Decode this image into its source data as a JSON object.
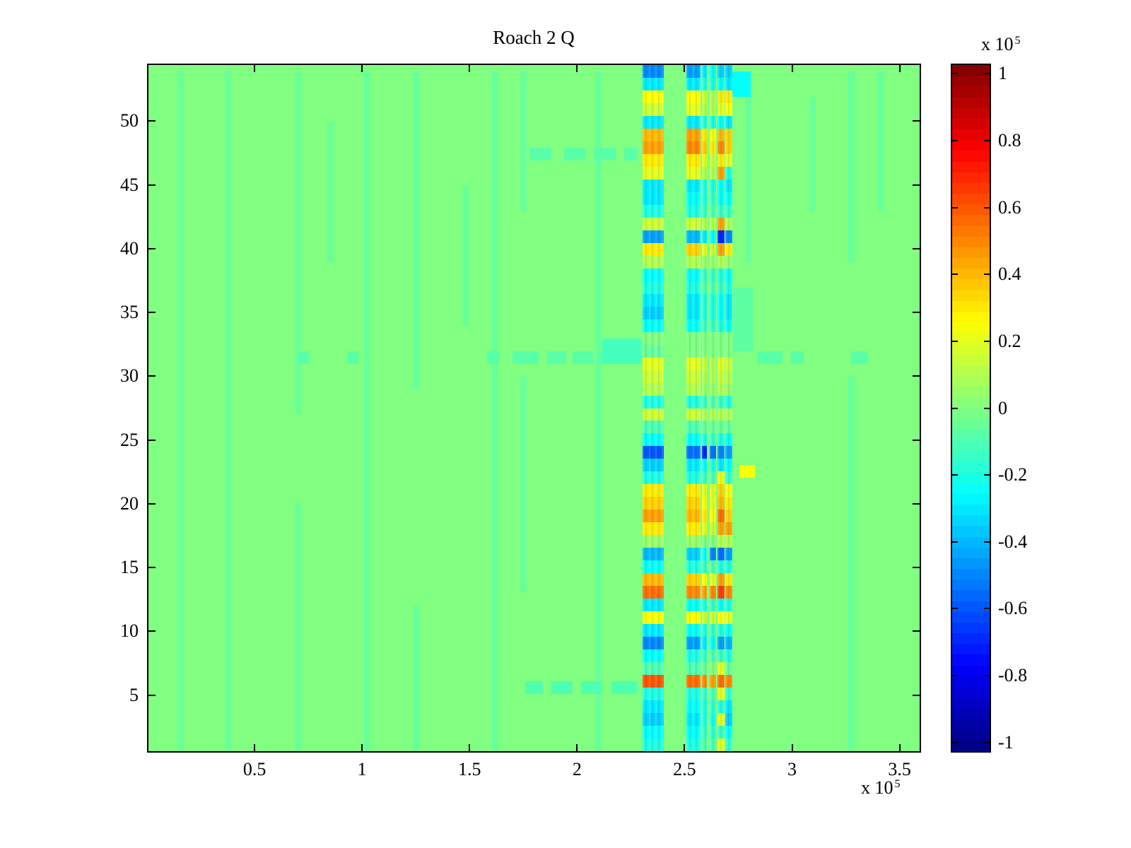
{
  "figure": {
    "title": "Roach 2 Q",
    "multiplier_base": "x 10",
    "multiplier_exponent": "5"
  },
  "chart_data": {
    "type": "heatmap",
    "title": "Roach 2 Q",
    "colormap": "jet",
    "grid": false,
    "x_axis": {
      "range_x1e5": [
        0,
        3.6
      ],
      "tick_values_x1e5": [
        0.5,
        1,
        1.5,
        2,
        2.5,
        3,
        3.5
      ],
      "tick_labels": [
        "0.5",
        "1",
        "1.5",
        "2",
        "2.5",
        "3",
        "3.5"
      ],
      "offset_text": "x 10^5"
    },
    "y_axis": {
      "range_rows": [
        0.5,
        54.5
      ],
      "rows": 54,
      "tick_values": [
        5,
        10,
        15,
        20,
        25,
        30,
        35,
        40,
        45,
        50
      ],
      "tick_labels": [
        "5",
        "10",
        "15",
        "20",
        "25",
        "30",
        "35",
        "40",
        "45",
        "50"
      ]
    },
    "colorbar": {
      "offset_text": "x 10^5",
      "clim_x1e5": [
        -1.03,
        1.03
      ],
      "steps": 64,
      "tick_values_x1e5": [
        1,
        0.8,
        0.6,
        0.4,
        0.2,
        0,
        -0.2,
        -0.4,
        -0.6,
        -0.8,
        -1
      ],
      "tick_labels": [
        "1",
        "0.8",
        "0.6",
        "0.4",
        "0.2",
        "0",
        "-0.2",
        "-0.4",
        "-0.6",
        "-0.8",
        "-1"
      ]
    },
    "background_value_x1e5": 0,
    "bands": [
      {
        "name": "band-2.3e5",
        "x_x1e5": [
          2.305,
          2.405
        ],
        "values_x1e5_rows54_to_1": [
          -0.5,
          -0.3,
          0.25,
          0.15,
          -0.3,
          0.4,
          0.45,
          0.3,
          0.2,
          -0.3,
          -0.3,
          -0.2,
          0.15,
          -0.45,
          0.3,
          0.1,
          -0.25,
          -0.2,
          -0.3,
          -0.35,
          -0.25,
          0.0,
          -0.05,
          0.2,
          0.15,
          0.1,
          -0.2,
          0.15,
          -0.1,
          -0.25,
          -0.6,
          -0.35,
          -0.2,
          0.3,
          0.35,
          0.45,
          0.3,
          0.05,
          -0.4,
          -0.25,
          0.4,
          0.55,
          -0.3,
          0.25,
          -0.3,
          -0.5,
          -0.25,
          -0.1,
          0.6,
          -0.2,
          -0.3,
          -0.35,
          -0.25,
          -0.2
        ]
      },
      {
        "name": "band-2.51e5",
        "x_x1e5": [
          2.51,
          2.578
        ],
        "values_x1e5_rows54_to_1": [
          -0.45,
          -0.3,
          0.25,
          0.2,
          -0.3,
          0.45,
          0.5,
          0.3,
          0.2,
          -0.3,
          -0.25,
          -0.2,
          0.15,
          -0.4,
          0.35,
          0.1,
          -0.25,
          -0.2,
          -0.3,
          -0.3,
          -0.25,
          0.0,
          0.0,
          0.2,
          0.15,
          0.1,
          -0.2,
          0.15,
          -0.1,
          -0.25,
          -0.55,
          -0.3,
          -0.2,
          0.3,
          0.35,
          0.4,
          0.3,
          0.05,
          -0.35,
          -0.2,
          0.35,
          0.5,
          -0.25,
          0.25,
          -0.25,
          -0.45,
          -0.2,
          -0.1,
          0.55,
          -0.2,
          -0.25,
          -0.3,
          -0.25,
          -0.2
        ]
      },
      {
        "name": "band-2.59e5",
        "x_x1e5": [
          2.583,
          2.607
        ],
        "values_x1e5_rows54_to_1": [
          -0.3,
          -0.2,
          0.15,
          0.1,
          -0.2,
          0.3,
          0.35,
          0.2,
          0.1,
          -0.2,
          -0.2,
          -0.15,
          0.1,
          -0.3,
          0.2,
          0.05,
          -0.15,
          -0.1,
          -0.2,
          -0.2,
          -0.15,
          0.0,
          0.0,
          0.15,
          0.1,
          0.05,
          -0.15,
          0.1,
          -0.05,
          -0.2,
          -0.7,
          -0.25,
          -0.15,
          0.2,
          0.25,
          0.3,
          0.2,
          0.0,
          -0.25,
          -0.15,
          0.25,
          0.45,
          -0.2,
          0.15,
          -0.2,
          -0.3,
          -0.15,
          -0.05,
          0.5,
          -0.15,
          -0.2,
          -0.2,
          -0.15,
          -0.1
        ]
      },
      {
        "name": "band-2.63e5",
        "x_x1e5": [
          2.62,
          2.65
        ],
        "values_x1e5_rows54_to_1": [
          -0.25,
          -0.2,
          0.1,
          0.1,
          -0.2,
          0.25,
          0.3,
          0.15,
          0.1,
          -0.2,
          -0.15,
          -0.1,
          0.1,
          -0.25,
          0.15,
          0.05,
          -0.15,
          -0.1,
          -0.2,
          -0.2,
          -0.15,
          0.0,
          0.0,
          0.1,
          0.1,
          0.05,
          -0.1,
          0.1,
          -0.05,
          -0.15,
          -0.55,
          -0.2,
          -0.1,
          0.2,
          0.2,
          0.25,
          0.15,
          0.0,
          -0.5,
          -0.1,
          0.2,
          0.5,
          -0.15,
          0.15,
          -0.15,
          -0.25,
          -0.1,
          0.0,
          0.45,
          -0.1,
          -0.15,
          -0.2,
          -0.15,
          -0.1
        ]
      },
      {
        "name": "band-2.67e5",
        "x_x1e5": [
          2.655,
          2.69
        ],
        "values_x1e5_rows54_to_1": [
          -0.35,
          -0.25,
          0.3,
          0.2,
          -0.25,
          0.4,
          0.5,
          0.3,
          0.45,
          -0.25,
          -0.25,
          -0.15,
          0.45,
          -0.7,
          0.45,
          0.1,
          -0.2,
          -0.15,
          -0.25,
          -0.25,
          -0.2,
          0.0,
          0.0,
          0.2,
          0.15,
          0.1,
          -0.15,
          0.1,
          -0.05,
          -0.2,
          -0.5,
          -0.3,
          0.2,
          0.35,
          0.4,
          0.55,
          0.45,
          0.1,
          -0.55,
          -0.2,
          0.45,
          0.65,
          -0.25,
          0.25,
          -0.2,
          -0.45,
          -0.15,
          0.2,
          0.55,
          0.2,
          -0.2,
          0.2,
          -0.15,
          0.2
        ]
      },
      {
        "name": "band-2.71e5",
        "x_x1e5": [
          2.693,
          2.725
        ],
        "values_x1e5_rows54_to_1": [
          -0.35,
          -0.3,
          0.3,
          0.25,
          -0.3,
          0.35,
          0.35,
          0.2,
          -0.2,
          -0.3,
          -0.25,
          -0.15,
          0.1,
          -0.5,
          0.3,
          0.05,
          -0.25,
          -0.2,
          -0.3,
          -0.3,
          -0.25,
          0.0,
          0.0,
          0.15,
          0.1,
          0.05,
          -0.2,
          0.1,
          -0.05,
          -0.25,
          -0.45,
          -0.25,
          -0.15,
          0.25,
          0.3,
          0.35,
          0.45,
          0.1,
          -0.45,
          -0.2,
          0.3,
          0.5,
          -0.2,
          0.2,
          -0.25,
          -0.4,
          -0.2,
          -0.05,
          0.5,
          -0.15,
          -0.3,
          -0.35,
          -0.25,
          -0.15
        ]
      }
    ],
    "patches": [
      {
        "x_x1e5": [
          2.12,
          2.3
        ],
        "rows": [
          32,
          33
        ],
        "value_x1e5": -0.12
      },
      {
        "x_x1e5": [
          2.72,
          2.81
        ],
        "rows": [
          53,
          54
        ],
        "value_x1e5": -0.25
      },
      {
        "x_x1e5": [
          2.76,
          2.83
        ],
        "rows": [
          23,
          23
        ],
        "value_x1e5": 0.25
      },
      {
        "x_x1e5": [
          2.73,
          2.82
        ],
        "rows": [
          33,
          37
        ],
        "value_x1e5": -0.07
      }
    ],
    "row_streaks": [
      {
        "row": 32,
        "value_x1e5": -0.08,
        "segments_x1e5": [
          [
            0.7,
            0.75
          ],
          [
            0.93,
            0.98
          ],
          [
            1.58,
            1.64
          ],
          [
            1.7,
            1.82
          ],
          [
            1.86,
            1.95
          ],
          [
            1.98,
            2.08
          ],
          [
            2.1,
            2.18
          ],
          [
            2.84,
            2.96
          ],
          [
            3.0,
            3.06
          ],
          [
            3.28,
            3.36
          ]
        ]
      },
      {
        "row": 6,
        "value_x1e5": -0.1,
        "segments_x1e5": [
          [
            1.76,
            1.84
          ],
          [
            1.88,
            1.98
          ],
          [
            2.02,
            2.12
          ],
          [
            2.16,
            2.28
          ]
        ]
      },
      {
        "row": 48,
        "value_x1e5": -0.08,
        "segments_x1e5": [
          [
            1.78,
            1.88
          ],
          [
            1.94,
            2.04
          ],
          [
            2.08,
            2.18
          ],
          [
            2.22,
            2.28
          ]
        ]
      }
    ],
    "faint_columns": {
      "value_x1e5": -0.05,
      "width_x1e5": 0.03,
      "columns": [
        {
          "x_x1e5": 0.15,
          "row_spans": [
            [
              1,
              54
            ]
          ]
        },
        {
          "x_x1e5": 0.37,
          "row_spans": [
            [
              1,
              54
            ]
          ]
        },
        {
          "x_x1e5": 0.7,
          "row_spans": [
            [
              28,
              54
            ],
            [
              1,
              20
            ]
          ]
        },
        {
          "x_x1e5": 0.85,
          "row_spans": [
            [
              40,
              50
            ]
          ]
        },
        {
          "x_x1e5": 1.02,
          "row_spans": [
            [
              1,
              54
            ]
          ]
        },
        {
          "x_x1e5": 1.25,
          "row_spans": [
            [
              30,
              54
            ],
            [
              1,
              12
            ]
          ]
        },
        {
          "x_x1e5": 1.48,
          "row_spans": [
            [
              35,
              45
            ]
          ]
        },
        {
          "x_x1e5": 1.62,
          "row_spans": [
            [
              1,
              54
            ]
          ]
        },
        {
          "x_x1e5": 1.75,
          "row_spans": [
            [
              44,
              54
            ],
            [
              14,
              30
            ]
          ]
        },
        {
          "x_x1e5": 2.1,
          "row_spans": [
            [
              1,
              54
            ]
          ]
        },
        {
          "x_x1e5": 2.8,
          "row_spans": [
            [
              40,
              54
            ]
          ]
        },
        {
          "x_x1e5": 3.1,
          "row_spans": [
            [
              44,
              52
            ]
          ]
        },
        {
          "x_x1e5": 3.28,
          "row_spans": [
            [
              40,
              54
            ],
            [
              1,
              30
            ]
          ]
        },
        {
          "x_x1e5": 3.42,
          "row_spans": [
            [
              44,
              54
            ]
          ]
        }
      ]
    }
  }
}
